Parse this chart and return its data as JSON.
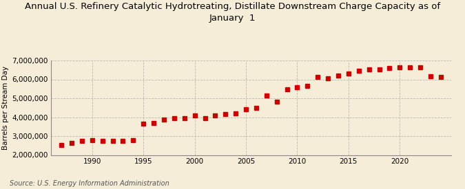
{
  "title": "Annual U.S. Refinery Catalytic Hydrotreating, Distillate Downstream Charge Capacity as of\nJanuary  1",
  "ylabel": "Barrels per Stream Day",
  "source": "Source: U.S. Energy Information Administration",
  "background_color": "#f5edd8",
  "plot_background_color": "#f5edd8",
  "marker_color": "#cc0000",
  "years": [
    1987,
    1988,
    1989,
    1990,
    1991,
    1992,
    1993,
    1994,
    1995,
    1996,
    1997,
    1998,
    1999,
    2000,
    2001,
    2002,
    2003,
    2004,
    2005,
    2006,
    2007,
    2008,
    2009,
    2010,
    2011,
    2012,
    2013,
    2014,
    2015,
    2016,
    2017,
    2018,
    2019,
    2020,
    2021,
    2022,
    2023,
    2024
  ],
  "values": [
    2530000,
    2620000,
    2730000,
    2780000,
    2760000,
    2760000,
    2760000,
    2800000,
    3650000,
    3680000,
    3880000,
    3960000,
    3960000,
    4080000,
    3940000,
    4100000,
    4150000,
    4200000,
    4430000,
    4480000,
    5130000,
    4820000,
    5470000,
    5590000,
    5660000,
    6110000,
    6060000,
    6200000,
    6310000,
    6450000,
    6520000,
    6540000,
    6590000,
    6620000,
    6650000,
    6650000,
    6180000,
    6120000
  ],
  "xlim": [
    1986,
    2025
  ],
  "ylim": [
    2000000,
    7000000
  ],
  "yticks": [
    2000000,
    3000000,
    4000000,
    5000000,
    6000000,
    7000000
  ],
  "xticks": [
    1990,
    1995,
    2000,
    2005,
    2010,
    2015,
    2020
  ],
  "grid_color": "#aaaaaa",
  "title_fontsize": 9.5,
  "label_fontsize": 7.5,
  "tick_fontsize": 7.5,
  "source_fontsize": 7
}
